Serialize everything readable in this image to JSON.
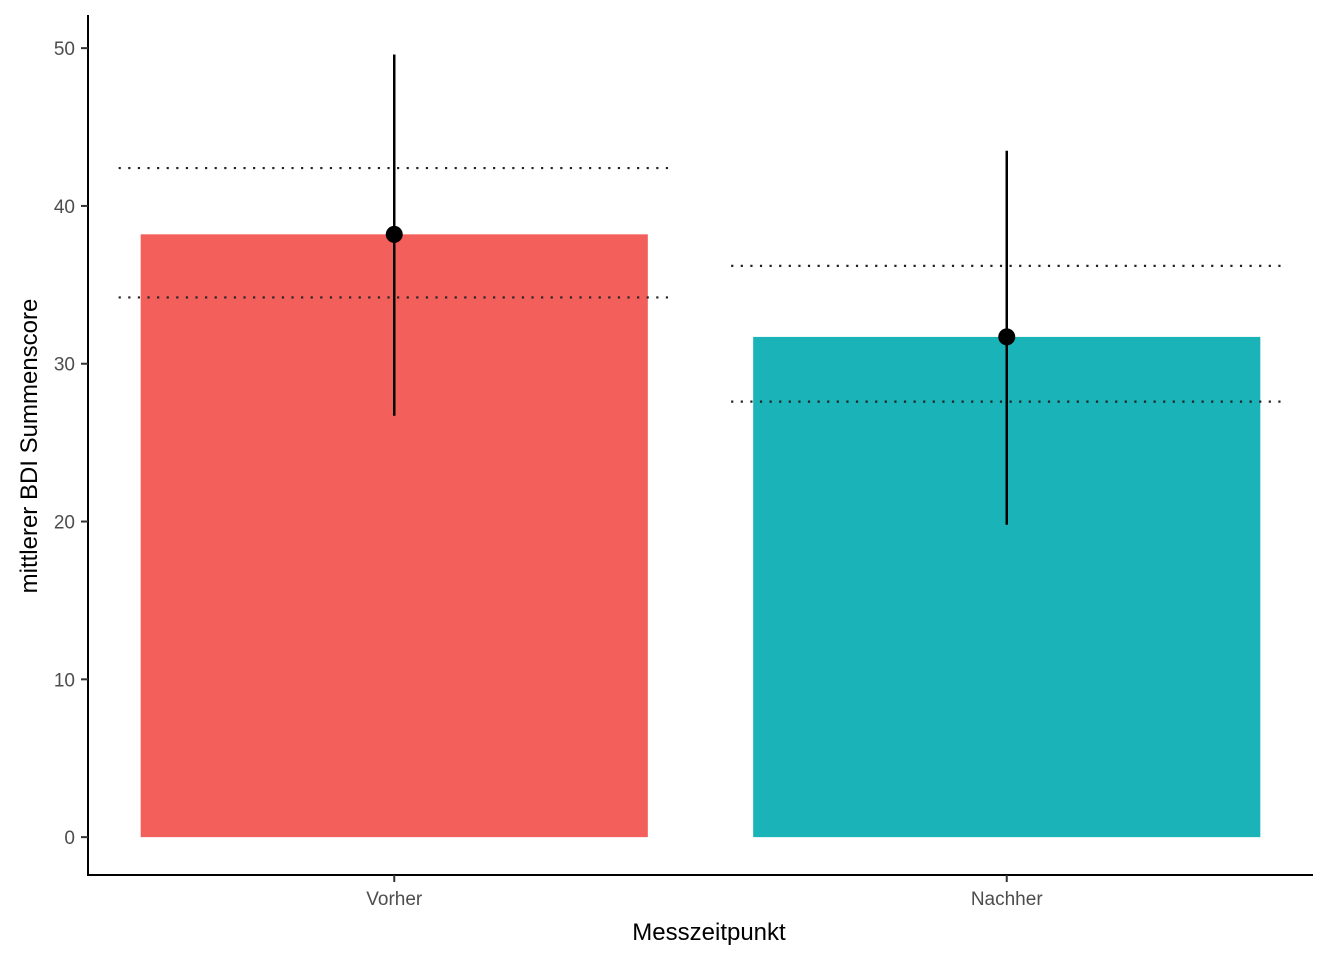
{
  "chart_data": {
    "type": "bar",
    "title": "",
    "xlabel": "Messzeitpunkt",
    "ylabel": "mittlerer BDI Summenscore",
    "categories": [
      "Vorher",
      "Nachher"
    ],
    "values": [
      38.2,
      31.7
    ],
    "bar_colors": [
      "#F35F5B",
      "#19B3B8"
    ],
    "error_bars": [
      {
        "category": "Vorher",
        "low": 26.7,
        "high": 49.6
      },
      {
        "category": "Nachher",
        "low": 19.8,
        "high": 43.5
      }
    ],
    "reference_lines": [
      {
        "category": "Vorher",
        "low": 34.2,
        "high": 42.4
      },
      {
        "category": "Nachher",
        "low": 27.6,
        "high": 36.2
      }
    ],
    "ylim": [
      -2.4,
      52.1
    ],
    "yticks": [
      0,
      10,
      20,
      30,
      40,
      50
    ],
    "grid": false,
    "legend": "none"
  }
}
